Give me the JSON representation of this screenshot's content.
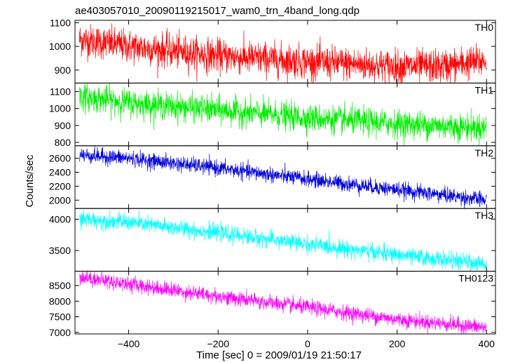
{
  "chart_data": {
    "type": "line",
    "title": "ae403057010_20090119215017_wam0_trn_4band_long.qdp",
    "xlabel": "Time [sec] 0 = 2009/01/19 21:50:17",
    "ylabel": "Counts/sec",
    "xlim": [
      -520,
      420
    ],
    "xticks": [
      -400,
      -200,
      0,
      200,
      400
    ],
    "grid": false,
    "panels": [
      {
        "name": "TH0",
        "color": "#ff0000",
        "ylim": [
          845,
          1110
        ],
        "yticks": [
          900,
          1000,
          1100
        ],
        "trend": [
          [
            -510,
            1030
          ],
          [
            -400,
            1000
          ],
          [
            -200,
            960
          ],
          [
            0,
            935
          ],
          [
            200,
            915
          ],
          [
            300,
            915
          ],
          [
            400,
            940
          ]
        ],
        "noise": 35
      },
      {
        "name": "TH1",
        "color": "#00ee00",
        "ylim": [
          780,
          1150
        ],
        "yticks": [
          800,
          900,
          1000,
          1100
        ],
        "trend": [
          [
            -510,
            1070
          ],
          [
            -400,
            1035
          ],
          [
            -200,
            990
          ],
          [
            0,
            945
          ],
          [
            200,
            910
          ],
          [
            400,
            885
          ]
        ],
        "noise": 40
      },
      {
        "name": "TH2",
        "color": "#0000dd",
        "ylim": [
          1880,
          2780
        ],
        "yticks": [
          2000,
          2200,
          2400,
          2600
        ],
        "trend": [
          [
            -510,
            2650
          ],
          [
            -400,
            2600
          ],
          [
            -200,
            2460
          ],
          [
            0,
            2300
          ],
          [
            200,
            2150
          ],
          [
            400,
            2000
          ]
        ],
        "noise": 55
      },
      {
        "name": "TH3",
        "color": "#00ffff",
        "ylim": [
          3170,
          4170
        ],
        "yticks": [
          3500,
          4000
        ],
        "trend": [
          [
            -510,
            4000
          ],
          [
            -400,
            3950
          ],
          [
            -200,
            3780
          ],
          [
            0,
            3600
          ],
          [
            200,
            3430
          ],
          [
            400,
            3280
          ]
        ],
        "noise": 65
      },
      {
        "name": "TH0123",
        "color": "#ff00ff",
        "ylim": [
          6950,
          8960
        ],
        "yticks": [
          7000,
          7500,
          8000,
          8500
        ],
        "trend": [
          [
            -510,
            8780
          ],
          [
            -400,
            8550
          ],
          [
            -200,
            8150
          ],
          [
            0,
            7800
          ],
          [
            200,
            7420
          ],
          [
            400,
            7150
          ]
        ],
        "noise": 120
      }
    ]
  }
}
